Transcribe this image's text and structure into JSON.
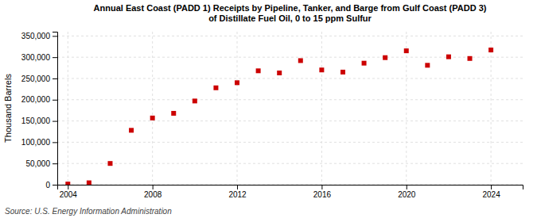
{
  "chart_data": {
    "type": "scatter",
    "title": "Annual East Coast (PADD 1) Receipts by Pipeline, Tanker, and Barge from Gulf Coast (PADD 3)\nof Distillate Fuel Oil, 0 to 15 ppm Sulfur",
    "ylabel": "Thousand Barrels",
    "annotation": "Source: U.S. Energy Information Administration",
    "x": [
      2004,
      2005,
      2006,
      2007,
      2008,
      2009,
      2010,
      2011,
      2012,
      2013,
      2014,
      2015,
      2016,
      2017,
      2018,
      2019,
      2020,
      2021,
      2022,
      2023,
      2024
    ],
    "values": [
      1500,
      4500,
      50000,
      128000,
      157000,
      168000,
      197000,
      228000,
      240000,
      268000,
      263000,
      292000,
      270000,
      265000,
      286000,
      299000,
      315000,
      281000,
      301000,
      297000,
      317000
    ],
    "color": "#cc0000",
    "marker": "square",
    "xlim": [
      2003.5,
      2025.5
    ],
    "xticks": [
      2004,
      2008,
      2012,
      2016,
      2020,
      2024
    ],
    "ylim": [
      0,
      360000
    ],
    "yticks": [
      0,
      {
        "value": 50000,
        "label": "50,000"
      },
      {
        "value": 100000,
        "label": "100,000"
      },
      {
        "value": 150000,
        "label": "150,000"
      },
      {
        "value": 200000,
        "label": "200,000"
      },
      {
        "value": 250000,
        "label": "250,000"
      },
      {
        "value": 300000,
        "label": "300,000"
      },
      {
        "value": 350000,
        "label": "350,000"
      }
    ],
    "grid": true
  }
}
